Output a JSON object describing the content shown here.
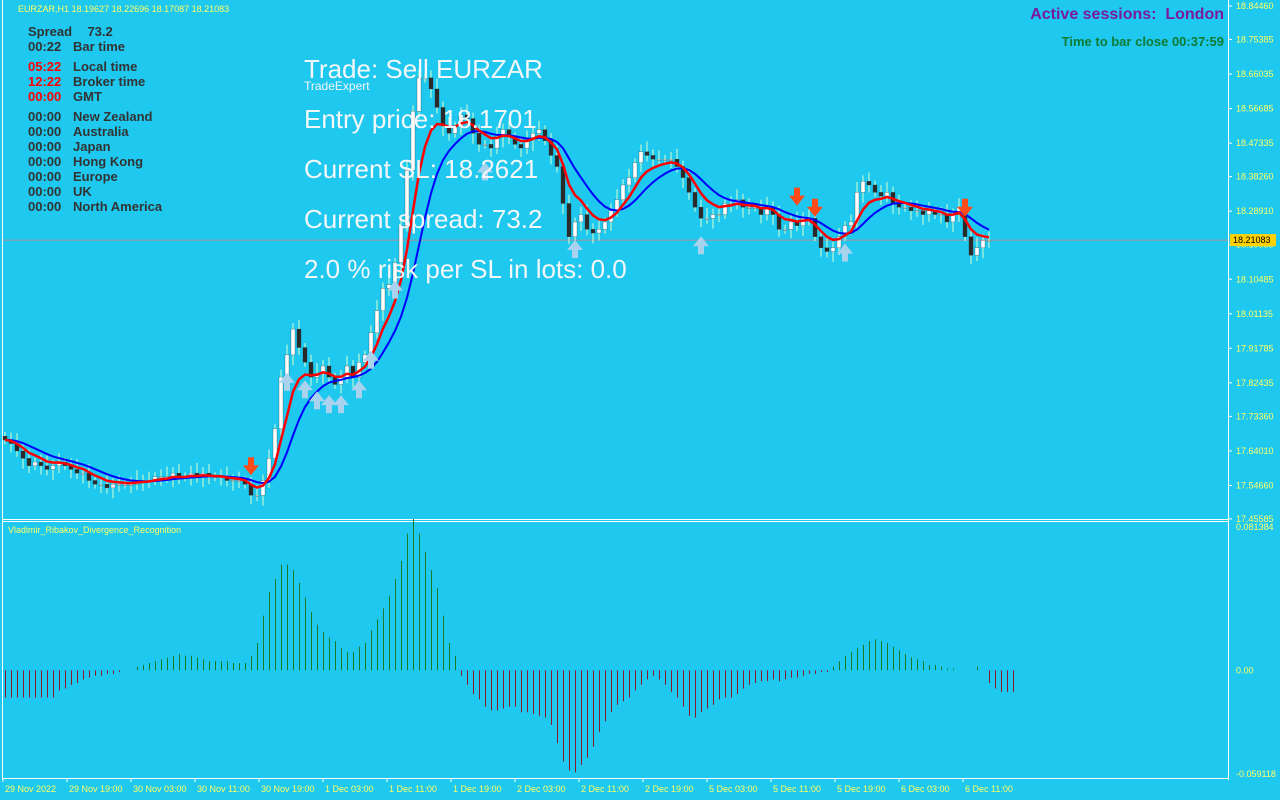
{
  "header": {
    "symbol": "EURZAR,H1",
    "ohlc": "18.19627 18.22696 18.17087 18.21083",
    "indicator_label": "TradeExpert",
    "active_sessions_label": "Active sessions:",
    "active_session": "London",
    "bar_close_label": "Time to bar close",
    "bar_close_value": "00:37:59"
  },
  "info_panel": {
    "spread_label": "Spread",
    "spread_value": "73.2",
    "bar_time_value": "00:22",
    "bar_time_label": "Bar time",
    "local_time_value": "05:22",
    "local_time_label": "Local time",
    "broker_time_value": "12:22",
    "broker_time_label": "Broker time",
    "gmt_value": "00:00",
    "gmt_label": "GMT",
    "markets": [
      {
        "time": "00:00",
        "name": "New Zealand"
      },
      {
        "time": "00:00",
        "name": "Australia"
      },
      {
        "time": "00:00",
        "name": "Japan"
      },
      {
        "time": "00:00",
        "name": "Hong Kong"
      },
      {
        "time": "00:00",
        "name": "Europe"
      },
      {
        "time": "00:00",
        "name": "UK"
      },
      {
        "time": "00:00",
        "name": "North America"
      }
    ]
  },
  "trade_panel": {
    "trade": "Trade: Sell EURZAR",
    "entry": "Entry price: 18.1701",
    "sl": "Current SL: 18.2621",
    "spread": "Current spread: 73.2",
    "risk": "2.0 % risk per SL in lots: 0.0"
  },
  "colors": {
    "background": "#1ec8ee",
    "bull_candle": "#ffffff",
    "bear_candle": "#2a2a2a",
    "wick": "#d9ffd0",
    "fast_ma": "#ff0000",
    "slow_ma": "#0000ff",
    "buy_arrow": "#a9d2ee",
    "sell_arrow": "#ff4a1a",
    "hist_pos": "#1a7a2a",
    "hist_neg": "#8a1a2a",
    "axis_text": "#ffff66",
    "price_line": "#d08080"
  },
  "chart_data": [
    {
      "type": "candlestick",
      "title": "EURZAR,H1",
      "y_ticks": [
        "18.84460",
        "18.75385",
        "18.66035",
        "18.56685",
        "18.47335",
        "18.38260",
        "18.28910",
        "18.19835",
        "18.10485",
        "18.01135",
        "17.91785",
        "17.82435",
        "17.73360",
        "17.64010",
        "17.54660",
        "17.45585"
      ],
      "current_price": "18.21083",
      "ylim": [
        17.4558,
        18.8446
      ],
      "x_ticks": [
        "29 Nov 2022",
        "29 Nov 19:00",
        "30 Nov 03:00",
        "30 Nov 11:00",
        "30 Nov 19:00",
        "1 Dec 03:00",
        "1 Dec 11:00",
        "1 Dec 19:00",
        "2 Dec 03:00",
        "2 Dec 11:00",
        "2 Dec 19:00",
        "5 Dec 03:00",
        "5 Dec 11:00",
        "5 Dec 19:00",
        "6 Dec 03:00",
        "6 Dec 11:00"
      ],
      "close": [
        17.67,
        17.66,
        17.64,
        17.62,
        17.6,
        17.61,
        17.6,
        17.59,
        17.6,
        17.61,
        17.6,
        17.59,
        17.58,
        17.58,
        17.56,
        17.55,
        17.55,
        17.54,
        17.55,
        17.55,
        17.55,
        17.55,
        17.56,
        17.56,
        17.56,
        17.57,
        17.57,
        17.57,
        17.58,
        17.57,
        17.57,
        17.58,
        17.57,
        17.58,
        17.57,
        17.57,
        17.57,
        17.56,
        17.56,
        17.56,
        17.55,
        17.52,
        17.52,
        17.56,
        17.62,
        17.7,
        17.84,
        17.9,
        17.97,
        17.92,
        17.88,
        17.84,
        17.85,
        17.87,
        17.84,
        17.82,
        17.84,
        17.87,
        17.84,
        17.88,
        17.9,
        17.96,
        18.02,
        18.08,
        18.09,
        18.15,
        18.25,
        18.4,
        18.56,
        18.65,
        18.65,
        18.62,
        18.57,
        18.52,
        18.5,
        18.52,
        18.55,
        18.54,
        18.5,
        18.47,
        18.47,
        18.46,
        18.49,
        18.51,
        18.49,
        18.47,
        18.46,
        18.48,
        18.5,
        18.51,
        18.48,
        18.44,
        18.41,
        18.31,
        18.22,
        18.26,
        18.28,
        18.24,
        18.23,
        18.24,
        18.26,
        18.29,
        18.32,
        18.36,
        18.38,
        18.42,
        18.45,
        18.44,
        18.43,
        18.43,
        18.43,
        18.43,
        18.41,
        18.38,
        18.34,
        18.3,
        18.27,
        18.27,
        18.28,
        18.28,
        18.31,
        18.31,
        18.32,
        18.3,
        18.3,
        18.3,
        18.28,
        18.3,
        18.28,
        18.24,
        18.24,
        18.26,
        18.25,
        18.27,
        18.27,
        18.22,
        18.19,
        18.18,
        18.19,
        18.22,
        18.25,
        18.26,
        18.34,
        18.37,
        18.36,
        18.34,
        18.33,
        18.34,
        18.31,
        18.3,
        18.3,
        18.29,
        18.29,
        18.28,
        18.29,
        18.28,
        18.28,
        18.26,
        18.28,
        18.3,
        18.22,
        18.17,
        18.19,
        18.21,
        18.21
      ],
      "fast_ma_label": "",
      "slow_ma_label": "",
      "buy_arrow_bars": [
        47,
        50,
        52,
        54,
        56,
        59,
        61,
        65,
        80,
        95,
        116,
        140
      ],
      "sell_arrow_bars": [
        41,
        132,
        135,
        160
      ]
    },
    {
      "type": "bar",
      "title": "Vladimir_Ribakov_Divergence_Recognition",
      "y_ticks": [
        "0.081384",
        "0.00",
        "-0.059118"
      ],
      "ylim": [
        -0.059118,
        0.081384
      ],
      "values": [
        -0.015,
        -0.015,
        -0.015,
        -0.015,
        -0.015,
        -0.015,
        -0.015,
        -0.015,
        -0.015,
        -0.011,
        -0.01,
        -0.008,
        -0.007,
        -0.005,
        -0.004,
        -0.003,
        -0.003,
        -0.002,
        -0.002,
        -0.001,
        -0.0,
        0.0,
        0.002,
        0.003,
        0.004,
        0.005,
        0.006,
        0.007,
        0.008,
        0.009,
        0.008,
        0.008,
        0.007,
        0.006,
        0.005,
        0.005,
        0.005,
        0.005,
        0.004,
        0.004,
        0.004,
        0.008,
        0.015,
        0.03,
        0.043,
        0.05,
        0.058,
        0.058,
        0.055,
        0.048,
        0.04,
        0.032,
        0.025,
        0.021,
        0.018,
        0.016,
        0.012,
        0.01,
        0.01,
        0.013,
        0.015,
        0.022,
        0.028,
        0.034,
        0.041,
        0.05,
        0.06,
        0.075,
        0.083,
        0.075,
        0.065,
        0.055,
        0.045,
        0.03,
        0.015,
        0.008,
        -0.003,
        -0.008,
        -0.013,
        -0.016,
        -0.02,
        -0.022,
        -0.022,
        -0.021,
        -0.02,
        -0.02,
        -0.023,
        -0.023,
        -0.024,
        -0.025,
        -0.026,
        -0.03,
        -0.04,
        -0.05,
        -0.055,
        -0.056,
        -0.052,
        -0.048,
        -0.042,
        -0.034,
        -0.028,
        -0.023,
        -0.019,
        -0.017,
        -0.015,
        -0.011,
        -0.008,
        -0.005,
        -0.003,
        -0.005,
        -0.008,
        -0.012,
        -0.015,
        -0.02,
        -0.025,
        -0.026,
        -0.023,
        -0.021,
        -0.019,
        -0.016,
        -0.015,
        -0.015,
        -0.013,
        -0.01,
        -0.008,
        -0.007,
        -0.006,
        -0.006,
        -0.005,
        -0.006,
        -0.005,
        -0.004,
        -0.004,
        -0.003,
        -0.002,
        -0.002,
        -0.001,
        -0.001,
        0.002,
        0.005,
        0.008,
        0.01,
        0.012,
        0.014,
        0.016,
        0.017,
        0.016,
        0.015,
        0.013,
        0.011,
        0.009,
        0.007,
        0.006,
        0.005,
        0.003,
        0.003,
        0.002,
        0.001,
        0.001,
        0.0,
        0.0,
        0.0,
        0.002,
        0.0,
        -0.007,
        -0.01,
        -0.012,
        -0.012,
        -0.012
      ]
    }
  ]
}
